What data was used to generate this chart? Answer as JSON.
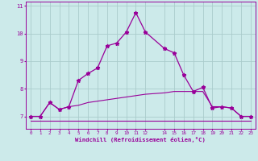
{
  "xlabel": "Windchill (Refroidissement éolien,°C)",
  "bg_color": "#cceaea",
  "grid_color": "#aacccc",
  "line_color": "#990099",
  "x_hours": [
    0,
    1,
    2,
    3,
    4,
    5,
    6,
    7,
    8,
    9,
    10,
    11,
    12,
    14,
    15,
    16,
    17,
    18,
    19,
    20,
    21,
    22,
    23
  ],
  "line1_y": [
    7.0,
    7.0,
    7.5,
    7.25,
    7.35,
    8.3,
    8.55,
    8.75,
    9.55,
    9.65,
    10.05,
    10.75,
    10.05,
    9.45,
    9.3,
    8.5,
    7.9,
    8.05,
    7.3,
    7.35,
    7.3,
    7.0,
    7.0
  ],
  "line2_y": [
    7.0,
    7.0,
    7.5,
    7.25,
    7.35,
    7.4,
    7.5,
    7.55,
    7.6,
    7.65,
    7.7,
    7.75,
    7.8,
    7.85,
    7.9,
    7.9,
    7.9,
    7.9,
    7.35,
    7.35,
    7.3,
    7.0,
    7.0
  ],
  "line3_y": [
    6.85,
    6.85,
    6.85,
    6.85,
    6.85,
    6.85,
    6.85,
    6.85,
    6.85,
    6.85,
    6.85,
    6.85,
    6.85,
    6.85,
    6.85,
    6.85,
    6.85,
    6.85,
    6.85,
    6.85,
    6.85,
    6.85,
    6.85
  ],
  "ylim": [
    6.55,
    11.15
  ],
  "yticks": [
    7,
    8,
    9,
    10,
    11
  ],
  "xtick_labels": [
    "0",
    "1",
    "2",
    "3",
    "4",
    "5",
    "6",
    "7",
    "8",
    "9",
    "1011",
    "12",
    "",
    "1415",
    "16",
    "17",
    "18",
    "19",
    "20",
    "21",
    "22",
    "23"
  ]
}
